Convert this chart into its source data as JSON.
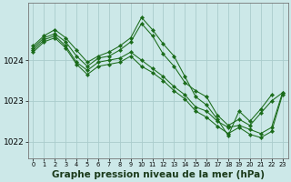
{
  "background_color": "#cce8e8",
  "grid_color": "#aacccc",
  "line_color": "#1a6b1a",
  "marker_color": "#1a6b1a",
  "xlabel": "Graphe pression niveau de la mer (hPa)",
  "xlabel_fontsize": 7.5,
  "ylabel_ticks": [
    1022,
    1023,
    1024
  ],
  "ylim": [
    1021.6,
    1025.4
  ],
  "xlim": [
    -0.5,
    23.5
  ],
  "xticks": [
    0,
    1,
    2,
    3,
    4,
    5,
    6,
    7,
    8,
    9,
    10,
    11,
    12,
    13,
    14,
    15,
    16,
    17,
    18,
    19,
    20,
    21,
    22,
    23
  ],
  "series": [
    {
      "x": [
        0,
        1,
        2,
        3,
        4,
        5,
        6,
        7,
        8,
        9,
        10,
        11,
        12,
        13,
        14,
        15,
        16,
        17,
        18,
        19,
        20,
        21,
        22
      ],
      "y": [
        1024.35,
        1024.6,
        1024.75,
        1024.55,
        1024.25,
        1023.95,
        1024.1,
        1024.2,
        1024.35,
        1024.55,
        1025.05,
        1024.75,
        1024.4,
        1024.1,
        1023.6,
        1023.1,
        1022.9,
        1022.55,
        1022.15,
        1022.75,
        1022.5,
        1022.8,
        1023.15
      ]
    },
    {
      "x": [
        0,
        1,
        2,
        3,
        4,
        5,
        6,
        7,
        8,
        9,
        10,
        11,
        12,
        13,
        14,
        15,
        16,
        17,
        18,
        19,
        20,
        21,
        22,
        23
      ],
      "y": [
        1024.3,
        1024.55,
        1024.65,
        1024.45,
        1024.1,
        1023.85,
        1024.05,
        1024.1,
        1024.25,
        1024.45,
        1024.9,
        1024.6,
        1024.15,
        1023.85,
        1023.45,
        1023.25,
        1023.1,
        1022.65,
        1022.4,
        1022.55,
        1022.4,
        1022.7,
        1023.0,
        1023.2
      ]
    },
    {
      "x": [
        0,
        1,
        2,
        3,
        4,
        5,
        6,
        7,
        8,
        9,
        10,
        11,
        12,
        13,
        14,
        15,
        16,
        17,
        18,
        19,
        20,
        21,
        22,
        23
      ],
      "y": [
        1024.25,
        1024.5,
        1024.6,
        1024.35,
        1023.95,
        1023.75,
        1023.95,
        1024.0,
        1024.05,
        1024.2,
        1024.0,
        1023.8,
        1023.6,
        1023.35,
        1023.15,
        1022.85,
        1022.75,
        1022.5,
        1022.35,
        1022.4,
        1022.3,
        1022.2,
        1022.35,
        1023.2
      ]
    },
    {
      "x": [
        0,
        1,
        2,
        3,
        4,
        5,
        6,
        7,
        8,
        9,
        10,
        11,
        12,
        13,
        14,
        15,
        16,
        17,
        18,
        19,
        20,
        21,
        22,
        23
      ],
      "y": [
        1024.2,
        1024.45,
        1024.55,
        1024.3,
        1023.9,
        1023.65,
        1023.85,
        1023.9,
        1023.95,
        1024.1,
        1023.85,
        1023.7,
        1023.5,
        1023.25,
        1023.05,
        1022.75,
        1022.6,
        1022.38,
        1022.2,
        1022.35,
        1022.18,
        1022.1,
        1022.25,
        1023.15
      ]
    }
  ]
}
